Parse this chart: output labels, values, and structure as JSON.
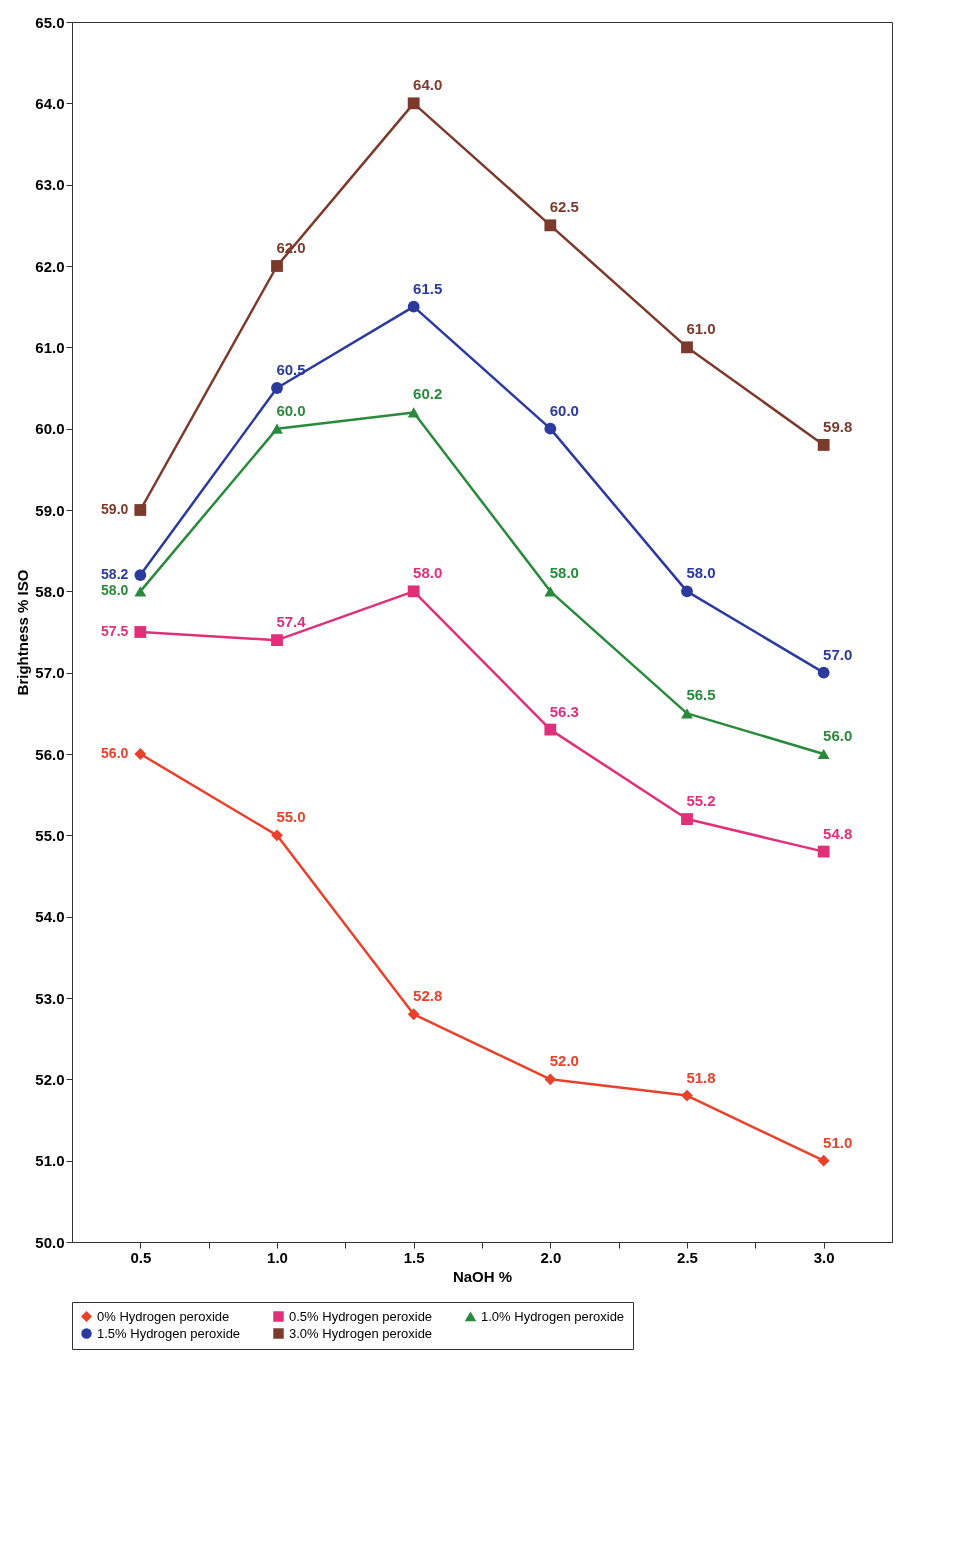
{
  "chart_data": {
    "type": "line",
    "xlabel": "NaOH %",
    "ylabel": "Brightness % ISO",
    "x": [
      0.5,
      1.0,
      1.5,
      2.0,
      2.5,
      3.0
    ],
    "series": [
      {
        "name": "0% Hydrogen peroxide",
        "color": "#e8412c",
        "marker": "diamond",
        "values": [
          56.0,
          55.0,
          52.8,
          52.0,
          51.8,
          51.0
        ],
        "value_labels": [
          "56.0",
          "55.0",
          "52.8",
          "52.0",
          "51.8",
          "51.0"
        ]
      },
      {
        "name": "0.5% Hydrogen peroxide",
        "color": "#e0307a",
        "marker": "square",
        "values": [
          57.5,
          57.4,
          58.0,
          56.3,
          55.2,
          54.8
        ],
        "value_labels": [
          "57.5",
          "57.4",
          "58.0",
          "56.3",
          "55.2",
          "54.8"
        ]
      },
      {
        "name": "1.0% Hydrogen peroxide",
        "color": "#2a8a3c",
        "marker": "triangle",
        "values": [
          58.0,
          60.0,
          60.2,
          58.0,
          56.5,
          56.0
        ],
        "value_labels": [
          "58.0",
          "60.0",
          "60.2",
          "58.0",
          "56.5",
          "56.0"
        ]
      },
      {
        "name": "1.5% Hydrogen peroxide",
        "color": "#2b3a9c",
        "marker": "circle",
        "values": [
          58.2,
          60.5,
          61.5,
          60.0,
          58.0,
          57.0
        ],
        "value_labels": [
          "58.2",
          "60.5",
          "61.5",
          "60.0",
          "58.0",
          "57.0"
        ]
      },
      {
        "name": "3.0% Hydrogen peroxide",
        "color": "#7b3a2c",
        "marker": "square",
        "values": [
          59.0,
          62.0,
          64.0,
          62.5,
          61.0,
          59.8
        ],
        "value_labels": [
          "59.0",
          "62.0",
          "64.0",
          "62.5",
          "61.0",
          "59.8"
        ]
      }
    ],
    "xlim": [
      0.25,
      3.25
    ],
    "xticks": [
      {
        "value": 0.5,
        "label": "0.5"
      },
      {
        "value": 0.75,
        "label": null
      },
      {
        "value": 1.0,
        "label": "1.0"
      },
      {
        "value": 1.25,
        "label": null
      },
      {
        "value": 1.5,
        "label": "1.5"
      },
      {
        "value": 1.75,
        "label": null
      },
      {
        "value": 2.0,
        "label": "2.0"
      },
      {
        "value": 2.25,
        "label": null
      },
      {
        "value": 2.5,
        "label": "2.5"
      },
      {
        "value": 2.75,
        "label": null
      },
      {
        "value": 3.0,
        "label": "3.0"
      }
    ],
    "ylim": [
      50,
      65
    ],
    "yticks": [
      {
        "value": 50,
        "label": "50.0"
      },
      {
        "value": 51,
        "label": "51.0"
      },
      {
        "value": 52,
        "label": "52.0"
      },
      {
        "value": 53,
        "label": "53.0"
      },
      {
        "value": 54,
        "label": "54.0"
      },
      {
        "value": 55,
        "label": "55.0"
      },
      {
        "value": 56,
        "label": "56.0"
      },
      {
        "value": 57,
        "label": "57.0"
      },
      {
        "value": 58,
        "label": "58.0"
      },
      {
        "value": 59,
        "label": "59.0"
      },
      {
        "value": 60,
        "label": "60.0"
      },
      {
        "value": 61,
        "label": "61.0"
      },
      {
        "value": 62,
        "label": "62.0"
      },
      {
        "value": 63,
        "label": "63.0"
      },
      {
        "value": 64,
        "label": "64.0"
      },
      {
        "value": 65,
        "label": "65.0"
      }
    ],
    "grid": false,
    "legend": "bottom",
    "line_style": "solid"
  }
}
